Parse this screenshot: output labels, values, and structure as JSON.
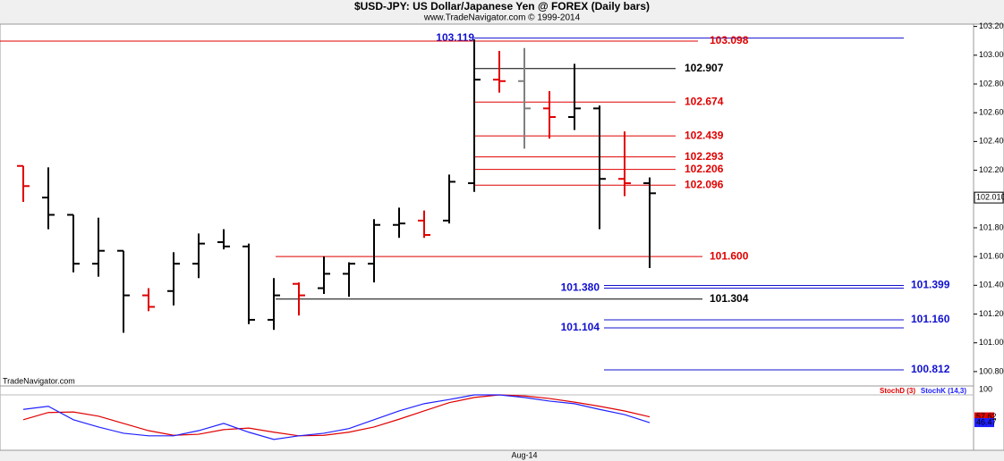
{
  "chart_data": [
    {
      "type": "ohlc",
      "title": "$USD-JPY:  US Dollar/Japanese Yen @ FOREX  (Daily bars)",
      "subtitle": "www.TradeNavigator.com © 1999-2014",
      "source": "TradeNavigator.com",
      "categories": [
        null,
        null,
        null,
        null,
        null,
        null,
        null,
        null,
        null,
        null,
        null,
        null,
        null,
        null,
        null,
        null,
        null,
        null,
        null,
        null,
        "Aug-14",
        null,
        null,
        null,
        null,
        null
      ],
      "series": [
        {
          "open": [
            102.23,
            102.01,
            101.89,
            101.55,
            101.64,
            101.33,
            101.36,
            101.55,
            101.7,
            101.67,
            101.16,
            101.41,
            101.38,
            101.48,
            101.55,
            101.82,
            101.85,
            101.85,
            102.11,
            102.83,
            102.82,
            102.63,
            102.57,
            102.63,
            102.14,
            102.11
          ],
          "high": [
            102.23,
            102.22,
            101.89,
            101.87,
            101.64,
            101.38,
            101.63,
            101.76,
            101.79,
            101.69,
            101.45,
            101.42,
            101.6,
            101.56,
            101.86,
            101.94,
            101.92,
            102.17,
            103.11,
            103.03,
            103.05,
            102.75,
            102.94,
            102.65,
            102.47,
            102.15
          ],
          "low": [
            101.98,
            101.79,
            101.49,
            101.46,
            101.07,
            101.22,
            101.26,
            101.45,
            101.65,
            101.13,
            101.09,
            101.19,
            101.34,
            101.32,
            101.42,
            101.73,
            101.73,
            101.83,
            102.05,
            102.74,
            102.35,
            102.42,
            102.48,
            101.79,
            102.02,
            101.52
          ],
          "close": [
            102.09,
            101.89,
            101.55,
            101.64,
            101.33,
            101.25,
            101.55,
            101.69,
            101.67,
            101.16,
            101.33,
            101.33,
            101.48,
            101.55,
            101.82,
            101.83,
            101.75,
            102.12,
            102.83,
            102.82,
            102.63,
            102.57,
            102.63,
            102.14,
            102.11,
            102.04
          ],
          "colors": [
            "#e00000",
            "#000000",
            "#000000",
            "#000000",
            "#000000",
            "#e00000",
            "#000000",
            "#000000",
            "#000000",
            "#000000",
            "#000000",
            "#e00000",
            "#000000",
            "#000000",
            "#000000",
            "#000000",
            "#e00000",
            "#000000",
            "#000000",
            "#e00000",
            "#808080",
            "#e00000",
            "#000000",
            "#000000",
            "#e00000",
            "#000000"
          ]
        }
      ],
      "ylim": [
        100.7,
        103.21
      ],
      "yticks": [
        {
          "value": 103.2,
          "label": "103.200"
        },
        {
          "value": 103,
          "label": "103.000"
        },
        {
          "value": 102.8,
          "label": "102.800"
        },
        {
          "value": 102.6,
          "label": "102.600"
        },
        {
          "value": 102.4,
          "label": "102.400"
        },
        {
          "value": 102.2,
          "label": "102.200"
        },
        {
          "value": 101.8,
          "label": "101.800"
        },
        {
          "value": 101.6,
          "label": "101.600"
        },
        {
          "value": 101.4,
          "label": "101.400"
        },
        {
          "value": 101.2,
          "label": "101.200"
        },
        {
          "value": 101,
          "label": "101.000"
        },
        {
          "value": 100.8,
          "label": "100.800"
        }
      ],
      "last_price": {
        "value": 102.01,
        "label": "102.010"
      },
      "levels": [
        {
          "value": 103.119,
          "label": "103.119",
          "color": "#1010d0"
        },
        {
          "value": 103.098,
          "label": "103.098",
          "color": "#e00000"
        },
        {
          "value": 102.907,
          "label": "102.907",
          "color": "#000000"
        },
        {
          "value": 102.674,
          "label": "102.674",
          "color": "#e00000"
        },
        {
          "value": 102.439,
          "label": "102.439",
          "color": "#e00000"
        },
        {
          "value": 102.293,
          "label": "102.293",
          "color": "#e00000"
        },
        {
          "value": 102.206,
          "label": "102.206",
          "color": "#e00000"
        },
        {
          "value": 102.096,
          "label": "102.096",
          "color": "#e00000"
        },
        {
          "value": 101.6,
          "label": "101.600",
          "color": "#e00000"
        },
        {
          "value": 101.399,
          "label": "101.399",
          "color": "#1010d0"
        },
        {
          "value": 101.38,
          "label": "101.380",
          "color": "#1010d0"
        },
        {
          "value": 101.304,
          "label": "101.304",
          "color": "#000000"
        },
        {
          "value": 101.16,
          "label": "101.160",
          "color": "#1010d0"
        },
        {
          "value": 101.104,
          "label": "101.104",
          "color": "#1010d0"
        },
        {
          "value": 100.812,
          "label": "100.812",
          "color": "#1010d0"
        }
      ]
    },
    {
      "type": "line",
      "series": [
        {
          "name": "StochD (3)",
          "color": "#e00000",
          "values": [
            52,
            66,
            67,
            59,
            45,
            31,
            22,
            24,
            33,
            36,
            28,
            21,
            22,
            28,
            38,
            53,
            69,
            85,
            95,
            100,
            98,
            93,
            86,
            78,
            69,
            57.62
          ]
        },
        {
          "name": "StochK (14,3)",
          "color": "#2020ff",
          "values": [
            72,
            78,
            52,
            38,
            26,
            21,
            21,
            31,
            45,
            28,
            14,
            21,
            26,
            35,
            52,
            69,
            83,
            91,
            100,
            100,
            95,
            88,
            83,
            72,
            62,
            46.47
          ]
        }
      ],
      "ylim": [
        0,
        100
      ],
      "yticks": [
        100
      ]
    }
  ]
}
